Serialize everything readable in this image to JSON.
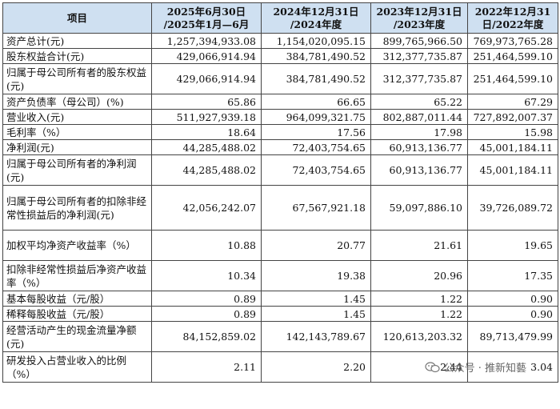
{
  "table": {
    "headers": [
      {
        "line1": "项目",
        "line2": ""
      },
      {
        "line1": "2025年6月30日",
        "line2": "/2025年1月—6月"
      },
      {
        "line1": "2024年12月31日",
        "line2": "/2024年度"
      },
      {
        "line1": "2023年12月31日",
        "line2": "/2023年度"
      },
      {
        "line1": "2022年12月31",
        "line2": "日/2022年度"
      }
    ],
    "rows": [
      {
        "label": "资产总计(元)",
        "values": [
          "1,257,394,933.08",
          "1,154,020,095.15",
          "899,765,966.50",
          "769,973,765.28"
        ]
      },
      {
        "label": "股东权益合计(元)",
        "values": [
          "429,066,914.94",
          "384,781,490.52",
          "312,377,735.87",
          "251,464,599.10"
        ]
      },
      {
        "label": "归属于母公司所有者的股东权益(元)",
        "values": [
          "429,066,914.94",
          "384,781,490.52",
          "312,377,735.87",
          "251,464,599.10"
        ]
      },
      {
        "label": "资产负债率（母公司）(%)",
        "values": [
          "65.86",
          "66.65",
          "65.22",
          "67.29"
        ]
      },
      {
        "label": "营业收入(元)",
        "values": [
          "511,927,939.18",
          "964,099,321.75",
          "802,887,011.44",
          "727,892,007.37"
        ]
      },
      {
        "label": "毛利率（%）",
        "values": [
          "18.64",
          "17.56",
          "17.98",
          "15.98"
        ]
      },
      {
        "label": "净利润(元)",
        "values": [
          "44,285,488.02",
          "72,403,754.65",
          "60,913,136.77",
          "45,001,184.11"
        ]
      },
      {
        "label": "归属于母公司所有者的净利润(元)",
        "values": [
          "44,285,488.02",
          "72,403,754.65",
          "60,913,136.77",
          "45,001,184.11"
        ]
      },
      {
        "label": "归属于母公司所有者的扣除非经常性损益后的净利润(元)",
        "values": [
          "42,056,242.07",
          "67,567,921.18",
          "59,097,886.10",
          "39,726,089.72"
        ]
      },
      {
        "label": "加权平均净资产收益率（%）",
        "values": [
          "10.88",
          "20.77",
          "21.61",
          "19.65"
        ]
      },
      {
        "label": "扣除非经常性损益后净资产收益率（%）",
        "values": [
          "10.34",
          "19.38",
          "20.96",
          "17.35"
        ]
      },
      {
        "label": "基本每股收益（元/股）",
        "values": [
          "0.89",
          "1.45",
          "1.22",
          "0.90"
        ]
      },
      {
        "label": "稀释每股收益（元/股）",
        "values": [
          "0.89",
          "1.45",
          "1.22",
          "0.90"
        ]
      },
      {
        "label": "经营活动产生的现金流量净额(元)",
        "values": [
          "84,152,859.02",
          "142,143,789.67",
          "120,613,203.32",
          "89,713,479.99"
        ]
      },
      {
        "label": "研发投入占营业收入的比例（%）",
        "values": [
          "2.11",
          "2.20",
          "2.44",
          "3.04"
        ]
      }
    ]
  },
  "watermark": {
    "text": "公众号 · 推新知藝",
    "icon": "wechat-icon"
  }
}
